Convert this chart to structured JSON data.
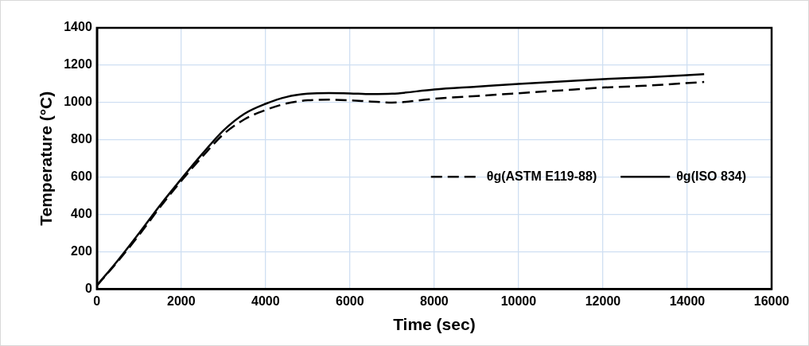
{
  "chart_data": {
    "type": "line",
    "xlabel": "Time (sec)",
    "ylabel": "Temperature (°C)",
    "xlim": [
      0,
      16000
    ],
    "xticks": [
      0,
      2000,
      4000,
      6000,
      8000,
      10000,
      12000,
      14000,
      16000
    ],
    "ylim": [
      0,
      1400
    ],
    "yticks": [
      0,
      200,
      400,
      600,
      800,
      1000,
      1200,
      1400
    ],
    "grid": true,
    "legend": "right",
    "marker": "none",
    "series": [
      {
        "name": "θg(ASTM E119-88)",
        "color": "#000000",
        "line_style": "dashed",
        "x": [
          0,
          500,
          1000,
          1500,
          2000,
          2500,
          3000,
          3500,
          4000,
          4500,
          5000,
          5500,
          6000,
          6500,
          7000,
          8000,
          9000,
          10000,
          11000,
          12000,
          13000,
          14400
        ],
        "values": [
          20,
          150,
          290,
          440,
          580,
          710,
          830,
          910,
          960,
          995,
          1012,
          1015,
          1012,
          1005,
          1000,
          1020,
          1035,
          1050,
          1065,
          1080,
          1090,
          1110
        ]
      },
      {
        "name": "θg(ISO 834)",
        "color": "#000000",
        "line_style": "solid",
        "x": [
          0,
          500,
          1000,
          1500,
          2000,
          2500,
          3000,
          3500,
          4000,
          4500,
          5000,
          5500,
          6000,
          6500,
          7000,
          8000,
          9000,
          10000,
          11000,
          12000,
          13000,
          14400
        ],
        "values": [
          20,
          155,
          300,
          450,
          590,
          725,
          850,
          940,
          993,
          1030,
          1047,
          1051,
          1049,
          1045,
          1047,
          1070,
          1085,
          1100,
          1112,
          1125,
          1135,
          1152
        ]
      }
    ]
  }
}
